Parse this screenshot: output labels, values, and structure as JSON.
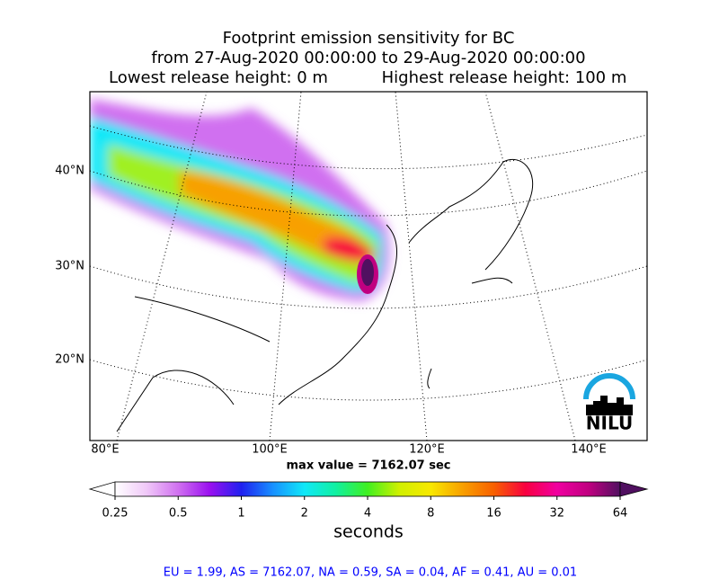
{
  "title": [
    "Footprint emission sensitivity for BC",
    "from 27-Aug-2020 00:00:00 to 29-Aug-2020 00:00:00",
    "Lowest release height: 0 m",
    "Highest release height: 100 m"
  ],
  "map": {
    "lat_labels": [
      "40°N",
      "30°N",
      "20°N"
    ],
    "lon_labels": [
      "80°E",
      "100°E",
      "120°E",
      "140°E"
    ],
    "logo": "NILU"
  },
  "max_value": "max value = 7162.07 sec",
  "colorbar": {
    "ticks": [
      0.25,
      0.5,
      1,
      2,
      4,
      8,
      16,
      32,
      64
    ],
    "log": true,
    "label": "seconds",
    "colors": [
      "#ffffff",
      "#f0c8f8",
      "#d070f0",
      "#9a10f0",
      "#2020f0",
      "#1890ff",
      "#10e8f8",
      "#10f0a0",
      "#40f020",
      "#d0f000",
      "#f8e800",
      "#f8a000",
      "#f86000",
      "#f80040",
      "#f000a0",
      "#c00080",
      "#501060"
    ]
  },
  "stats": "EU = 1.99,  AS = 7162.07,  NA = 0.59,  SA = 0.04,  AF = 0.41,  AU = 0.01"
}
